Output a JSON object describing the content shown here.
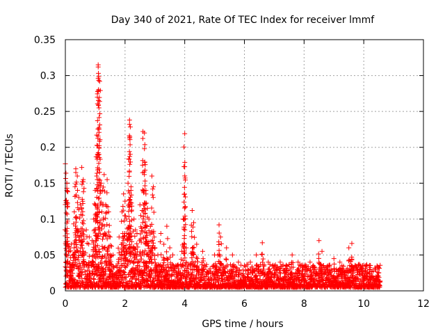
{
  "chart_data": {
    "type": "scatter",
    "title": "Day 340 of 2021, Rate Of TEC Index for receiver lmmf",
    "xlabel": "GPS time / hours",
    "ylabel": "ROTI / TECUs",
    "xlim": [
      0,
      12
    ],
    "ylim": [
      0,
      0.35
    ],
    "x_ticks": [
      "0",
      "2",
      "4",
      "6",
      "8",
      "10",
      "12"
    ],
    "y_ticks": [
      "0",
      "0.05",
      "0.1",
      "0.15",
      "0.2",
      "0.25",
      "0.3",
      "0.35"
    ],
    "grid": true,
    "marker": "+",
    "marker_color": "#ff0000",
    "series": [
      {
        "name": "ROTI",
        "note": "dense cloud of points, baseline roughly 0.005-0.03 TECUs for 0-10.5 h; visible peaks listed below",
        "points": [
          [
            0.0,
            0.177
          ],
          [
            0.05,
            0.15
          ],
          [
            0.05,
            0.143
          ],
          [
            0.05,
            0.14
          ],
          [
            0.08,
            0.138
          ],
          [
            0.15,
            0.06
          ],
          [
            0.2,
            0.065
          ],
          [
            0.25,
            0.05
          ],
          [
            0.3,
            0.11
          ],
          [
            0.35,
            0.17
          ],
          [
            0.35,
            0.165
          ],
          [
            0.4,
            0.16
          ],
          [
            0.45,
            0.13
          ],
          [
            0.5,
            0.12
          ],
          [
            0.55,
            0.172
          ],
          [
            0.6,
            0.155
          ],
          [
            0.6,
            0.152
          ],
          [
            0.7,
            0.085
          ],
          [
            0.8,
            0.075
          ],
          [
            0.9,
            0.07
          ],
          [
            0.95,
            0.1
          ],
          [
            1.0,
            0.14
          ],
          [
            1.0,
            0.12
          ],
          [
            1.05,
            0.16
          ],
          [
            1.05,
            0.217
          ],
          [
            1.1,
            0.315
          ],
          [
            1.1,
            0.312
          ],
          [
            1.1,
            0.296
          ],
          [
            1.15,
            0.292
          ],
          [
            1.15,
            0.264
          ],
          [
            1.2,
            0.15
          ],
          [
            1.25,
            0.14
          ],
          [
            1.3,
            0.162
          ],
          [
            1.35,
            0.12
          ],
          [
            1.4,
            0.155
          ],
          [
            1.45,
            0.11
          ],
          [
            1.5,
            0.075
          ],
          [
            1.55,
            0.062
          ],
          [
            1.6,
            0.05
          ],
          [
            1.7,
            0.035
          ],
          [
            1.8,
            0.075
          ],
          [
            1.9,
            0.11
          ],
          [
            1.95,
            0.135
          ],
          [
            2.0,
            0.125
          ],
          [
            2.05,
            0.1
          ],
          [
            2.1,
            0.15
          ],
          [
            2.15,
            0.238
          ],
          [
            2.15,
            0.232
          ],
          [
            2.15,
            0.213
          ],
          [
            2.2,
            0.145
          ],
          [
            2.2,
            0.14
          ],
          [
            2.3,
            0.1
          ],
          [
            2.35,
            0.085
          ],
          [
            2.4,
            0.08
          ],
          [
            2.5,
            0.12
          ],
          [
            2.6,
            0.222
          ],
          [
            2.65,
            0.22
          ],
          [
            2.65,
            0.198
          ],
          [
            2.7,
            0.14
          ],
          [
            2.7,
            0.135
          ],
          [
            2.75,
            0.115
          ],
          [
            2.8,
            0.1
          ],
          [
            2.85,
            0.09
          ],
          [
            2.9,
            0.16
          ],
          [
            2.95,
            0.145
          ],
          [
            3.0,
            0.06
          ],
          [
            3.1,
            0.05
          ],
          [
            3.2,
            0.08
          ],
          [
            3.3,
            0.065
          ],
          [
            3.4,
            0.09
          ],
          [
            3.5,
            0.06
          ],
          [
            3.6,
            0.05
          ],
          [
            3.7,
            0.035
          ],
          [
            3.9,
            0.055
          ],
          [
            3.95,
            0.1
          ],
          [
            4.0,
            0.219
          ],
          [
            4.0,
            0.173
          ],
          [
            4.05,
            0.06
          ],
          [
            4.25,
            0.112
          ],
          [
            4.3,
            0.095
          ],
          [
            4.4,
            0.065
          ],
          [
            4.6,
            0.055
          ],
          [
            5.0,
            0.05
          ],
          [
            5.15,
            0.092
          ],
          [
            5.2,
            0.075
          ],
          [
            5.4,
            0.06
          ],
          [
            5.6,
            0.05
          ],
          [
            5.8,
            0.04
          ],
          [
            6.0,
            0.035
          ],
          [
            6.2,
            0.04
          ],
          [
            6.4,
            0.05
          ],
          [
            6.6,
            0.067
          ],
          [
            6.8,
            0.04
          ],
          [
            7.0,
            0.035
          ],
          [
            7.2,
            0.04
          ],
          [
            7.4,
            0.035
          ],
          [
            7.6,
            0.05
          ],
          [
            7.8,
            0.04
          ],
          [
            8.0,
            0.035
          ],
          [
            8.2,
            0.04
          ],
          [
            8.5,
            0.07
          ],
          [
            8.6,
            0.055
          ],
          [
            8.8,
            0.035
          ],
          [
            9.0,
            0.045
          ],
          [
            9.2,
            0.04
          ],
          [
            9.5,
            0.06
          ],
          [
            9.6,
            0.066
          ],
          [
            9.8,
            0.03
          ],
          [
            10.0,
            0.035
          ],
          [
            10.2,
            0.03
          ],
          [
            10.4,
            0.03
          ],
          [
            10.5,
            0.025
          ]
        ]
      }
    ]
  }
}
